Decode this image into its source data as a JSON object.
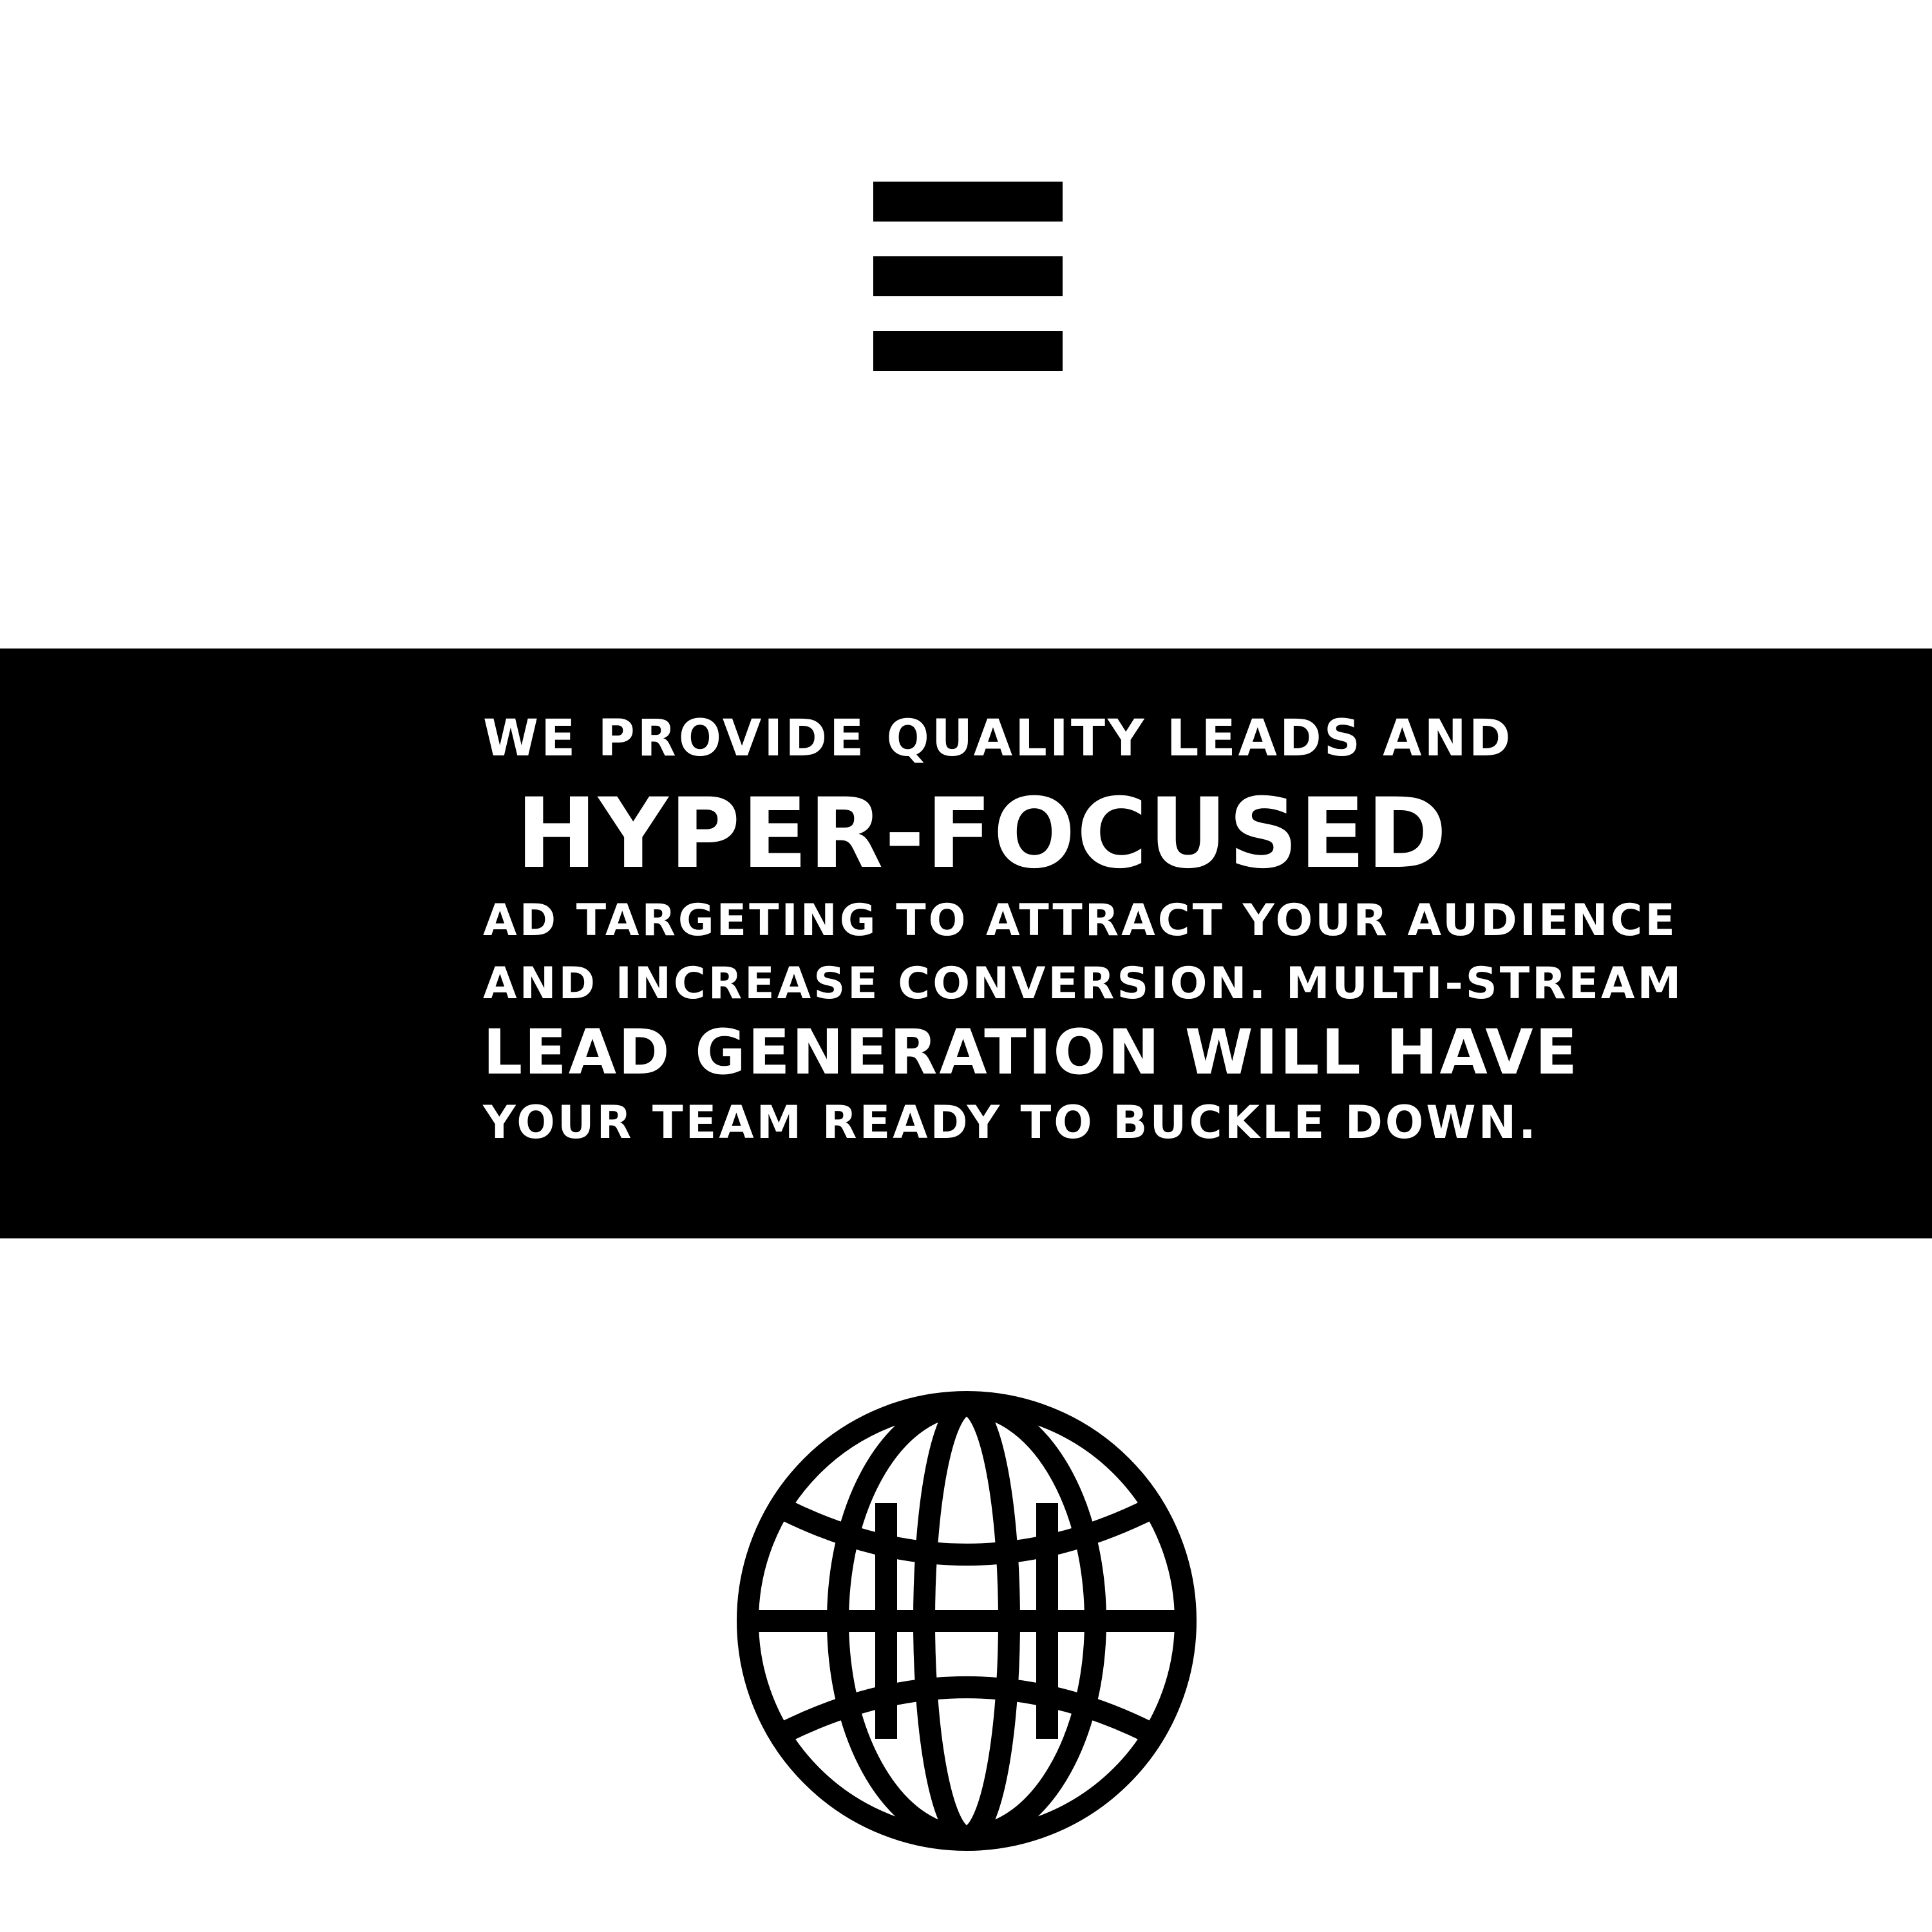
{
  "icons": {
    "menu": "hamburger-menu-icon",
    "globe": "globe-icon"
  },
  "colors": {
    "background": "#ffffff",
    "banner": "#000000",
    "banner_text": "#ffffff",
    "icons": "#000000"
  },
  "banner": {
    "lines": [
      "WE PROVIDE QUALITY LEADS AND",
      "HYPER-FOCUSED",
      "AD TARGETING TO ATTRACT YOUR AUDIENCE",
      "AND INCREASE CONVERSION. MULTI-STREAM",
      "LEAD GENERATION WILL HAVE",
      "YOUR TEAM READY TO BUCKLE DOWN."
    ]
  }
}
